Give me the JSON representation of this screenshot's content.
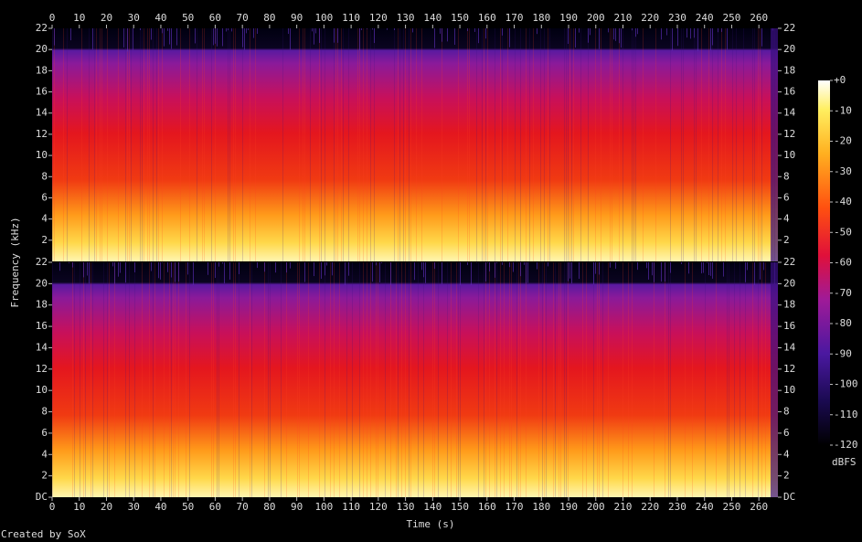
{
  "chart_data": {
    "type": "spectrogram",
    "xlabel": "Time (s)",
    "ylabel": "Frequency (kHz)",
    "xlim": [
      0,
      267
    ],
    "xticks": [
      0,
      10,
      20,
      30,
      40,
      50,
      60,
      70,
      80,
      90,
      100,
      110,
      120,
      130,
      140,
      150,
      160,
      170,
      180,
      190,
      200,
      210,
      220,
      230,
      240,
      250,
      260
    ],
    "channels": [
      {
        "ylim": [
          0,
          22
        ],
        "yticks": [
          2,
          4,
          6,
          8,
          10,
          12,
          14,
          16,
          18,
          20,
          22
        ]
      },
      {
        "ylim": [
          0,
          22
        ],
        "yticks": [
          {
            "value": 0,
            "label": "DC"
          },
          2,
          4,
          6,
          8,
          10,
          12,
          14,
          16,
          18,
          20,
          22
        ]
      }
    ],
    "colorbar": {
      "label": "dBFS",
      "lim": [
        -120,
        0
      ],
      "ticks": [
        {
          "value": 0,
          "label": "+0"
        },
        -10,
        -20,
        -30,
        -40,
        -50,
        -60,
        -70,
        -80,
        -90,
        -100,
        -110,
        -120
      ]
    },
    "footer": "Created by SoX"
  }
}
